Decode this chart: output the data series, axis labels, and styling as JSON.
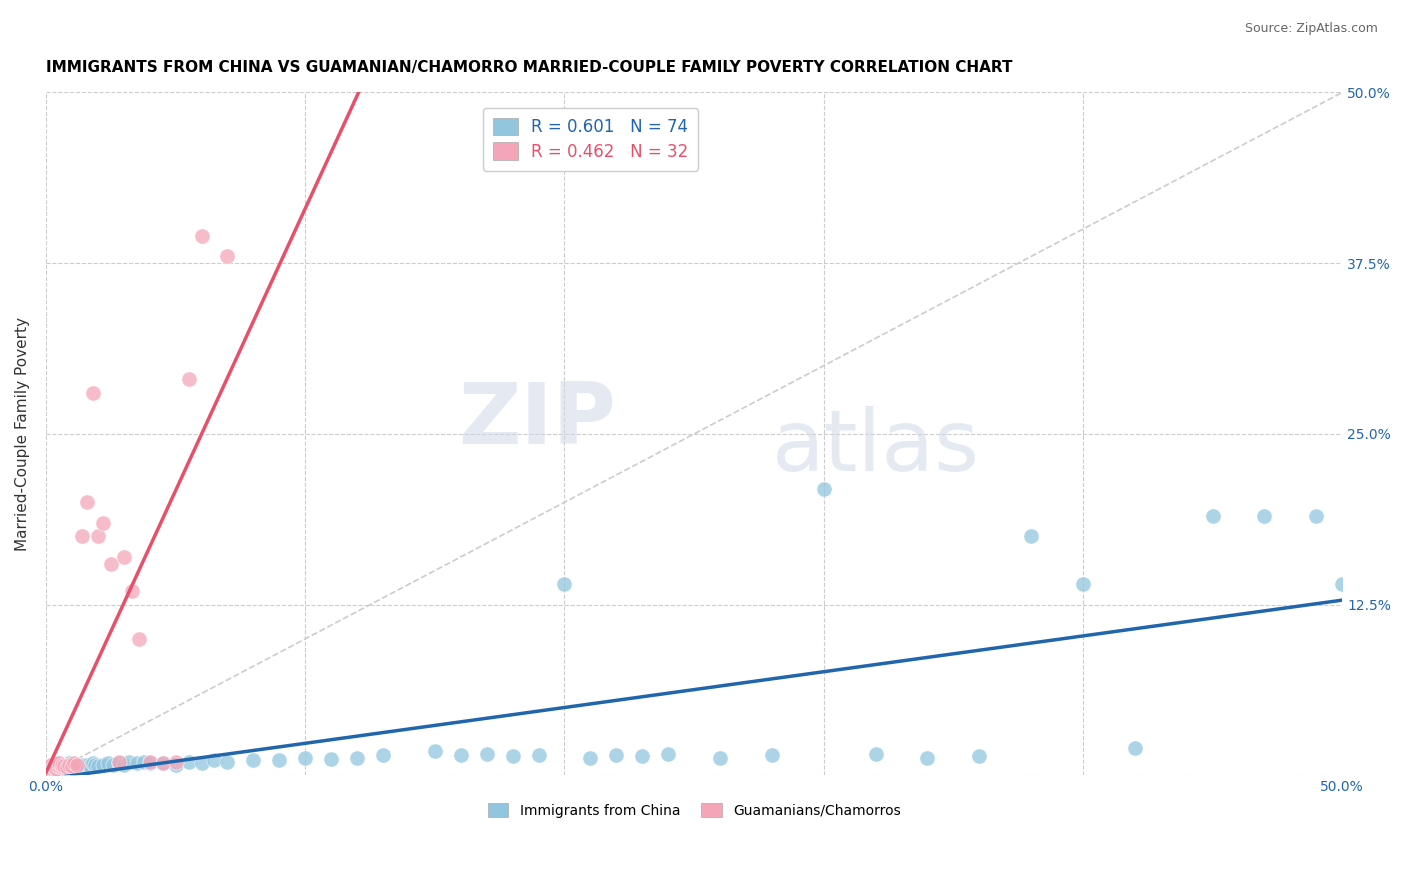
{
  "title": "IMMIGRANTS FROM CHINA VS GUAMANIAN/CHAMORRO MARRIED-COUPLE FAMILY POVERTY CORRELATION CHART",
  "source": "Source: ZipAtlas.com",
  "ylabel": "Married-Couple Family Poverty",
  "xlim": [
    0.0,
    0.5
  ],
  "ylim": [
    0.0,
    0.5
  ],
  "R_blue": 0.601,
  "N_blue": 74,
  "R_pink": 0.462,
  "N_pink": 32,
  "blue_color": "#92c5de",
  "pink_color": "#f4a6b8",
  "blue_line_color": "#2166ac",
  "pink_line_color": "#e8506a",
  "watermark_zip": "ZIP",
  "watermark_atlas": "atlas",
  "legend_label_blue": "Immigrants from China",
  "legend_label_pink": "Guamanians/Chamorros",
  "blue_x": [
    0.001,
    0.002,
    0.002,
    0.003,
    0.003,
    0.004,
    0.004,
    0.005,
    0.005,
    0.006,
    0.006,
    0.007,
    0.007,
    0.008,
    0.008,
    0.009,
    0.009,
    0.01,
    0.01,
    0.011,
    0.011,
    0.012,
    0.013,
    0.014,
    0.015,
    0.016,
    0.017,
    0.018,
    0.019,
    0.02,
    0.022,
    0.024,
    0.026,
    0.028,
    0.03,
    0.032,
    0.035,
    0.038,
    0.04,
    0.045,
    0.05,
    0.055,
    0.06,
    0.065,
    0.07,
    0.08,
    0.09,
    0.1,
    0.11,
    0.12,
    0.13,
    0.15,
    0.16,
    0.17,
    0.18,
    0.19,
    0.2,
    0.21,
    0.22,
    0.23,
    0.24,
    0.26,
    0.28,
    0.3,
    0.32,
    0.34,
    0.36,
    0.38,
    0.4,
    0.42,
    0.45,
    0.47,
    0.49,
    0.5
  ],
  "blue_y": [
    0.005,
    0.008,
    0.006,
    0.004,
    0.007,
    0.005,
    0.008,
    0.006,
    0.009,
    0.005,
    0.007,
    0.006,
    0.008,
    0.005,
    0.007,
    0.006,
    0.009,
    0.006,
    0.008,
    0.005,
    0.007,
    0.006,
    0.007,
    0.008,
    0.006,
    0.008,
    0.007,
    0.009,
    0.008,
    0.007,
    0.008,
    0.009,
    0.008,
    0.009,
    0.008,
    0.01,
    0.009,
    0.01,
    0.009,
    0.009,
    0.008,
    0.01,
    0.009,
    0.011,
    0.01,
    0.011,
    0.011,
    0.013,
    0.012,
    0.013,
    0.015,
    0.018,
    0.015,
    0.016,
    0.014,
    0.015,
    0.14,
    0.013,
    0.015,
    0.014,
    0.016,
    0.013,
    0.015,
    0.21,
    0.016,
    0.013,
    0.014,
    0.175,
    0.14,
    0.02,
    0.19,
    0.19,
    0.19,
    0.14
  ],
  "pink_x": [
    0.001,
    0.002,
    0.003,
    0.003,
    0.004,
    0.004,
    0.005,
    0.005,
    0.006,
    0.006,
    0.007,
    0.008,
    0.009,
    0.01,
    0.011,
    0.012,
    0.014,
    0.016,
    0.018,
    0.02,
    0.022,
    0.025,
    0.028,
    0.03,
    0.033,
    0.036,
    0.04,
    0.045,
    0.05,
    0.055,
    0.06,
    0.07
  ],
  "pink_y": [
    0.006,
    0.008,
    0.006,
    0.007,
    0.005,
    0.008,
    0.007,
    0.009,
    0.006,
    0.008,
    0.007,
    0.006,
    0.008,
    0.007,
    0.009,
    0.008,
    0.175,
    0.2,
    0.28,
    0.175,
    0.185,
    0.155,
    0.01,
    0.16,
    0.135,
    0.1,
    0.01,
    0.009,
    0.01,
    0.29,
    0.395,
    0.38
  ]
}
